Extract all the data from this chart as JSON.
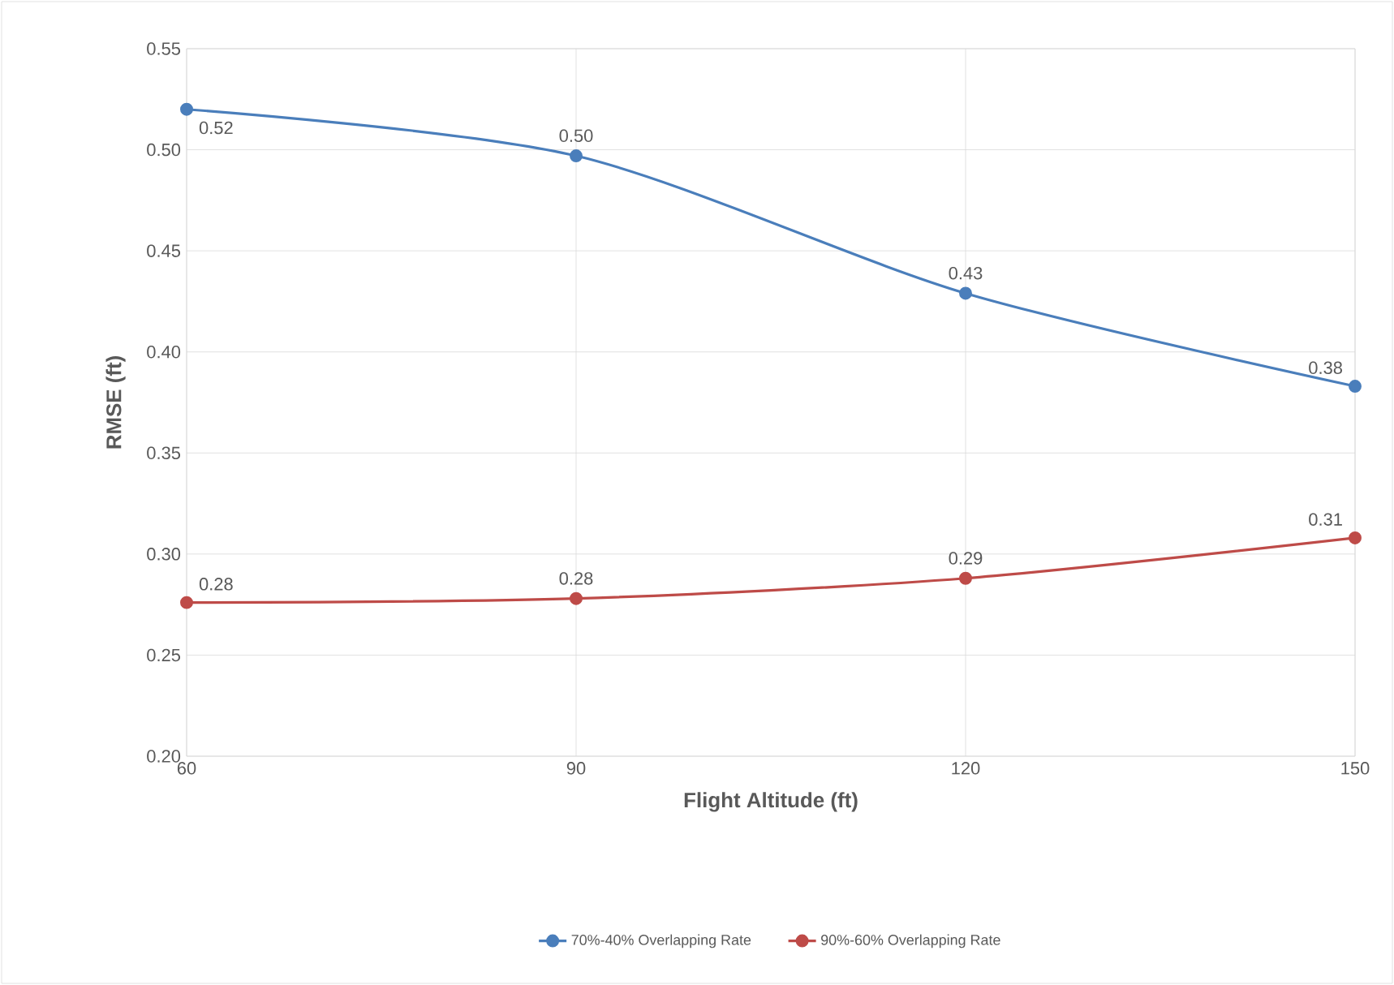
{
  "chart_data": {
    "type": "line",
    "xlabel": "Flight Altitude (ft)",
    "ylabel": "RMSE (ft)",
    "x": [
      60,
      90,
      120,
      150
    ],
    "series": [
      {
        "name": "70%-40% Overlapping Rate",
        "color": "#4a7ebb",
        "values": [
          0.52,
          0.497,
          0.429,
          0.383
        ],
        "value_labels": [
          "0.52",
          "0.50",
          "0.43",
          "0.38"
        ]
      },
      {
        "name": "90%-60% Overlapping Rate",
        "color": "#be4b48",
        "values": [
          0.276,
          0.278,
          0.288,
          0.308
        ],
        "value_labels": [
          "0.28",
          "0.28",
          "0.29",
          "0.31"
        ]
      }
    ],
    "xlim": [
      60,
      150
    ],
    "xticks": [
      60,
      90,
      120,
      150
    ],
    "ylim": [
      0.2,
      0.55
    ],
    "yticks": [
      {
        "value": 0.2,
        "label": "0.20"
      },
      {
        "value": 0.25,
        "label": "0.25"
      },
      {
        "value": 0.3,
        "label": "0.30"
      },
      {
        "value": 0.35,
        "label": "0.35"
      },
      {
        "value": 0.4,
        "label": "0.40"
      },
      {
        "value": 0.45,
        "label": "0.45"
      },
      {
        "value": 0.5,
        "label": "0.50"
      },
      {
        "value": 0.55,
        "label": "0.55"
      }
    ],
    "grid": true,
    "legend": "bottom",
    "marker": "circle",
    "line_style": "solid"
  }
}
